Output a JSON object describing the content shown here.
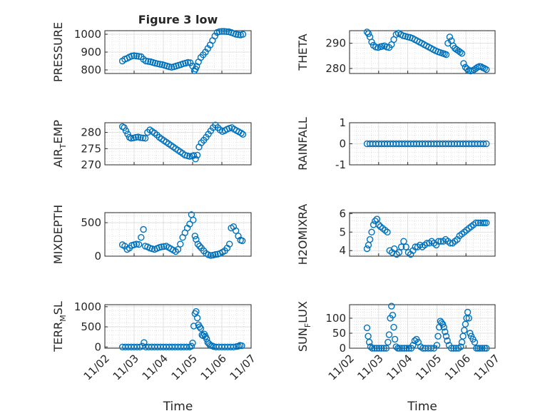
{
  "chart_data": [
    {
      "type": "scatter",
      "title": "Figure 3 low",
      "ylabel": "PRESSURE",
      "ylim": [
        780,
        1020
      ],
      "yticks": [
        "800",
        "900",
        "1000"
      ],
      "xlim_days": [
        2,
        7
      ],
      "series": [
        {
          "x": [
            2.6,
            2.68,
            2.76,
            2.84,
            2.92,
            3.0,
            3.08,
            3.16,
            3.24,
            3.32,
            3.4,
            3.48,
            3.56,
            3.64,
            3.72,
            3.8,
            3.88,
            3.96,
            4.04,
            4.12,
            4.2,
            4.28,
            4.36,
            4.44,
            4.52,
            4.6,
            4.68,
            4.76,
            4.84,
            4.92,
            5.0,
            5.06,
            5.1,
            5.14,
            5.2,
            5.28,
            5.36,
            5.44,
            5.52,
            5.6,
            5.68,
            5.76,
            5.84,
            5.92,
            6.0,
            6.08,
            6.16,
            6.24,
            6.32,
            6.4,
            6.48,
            6.56,
            6.64,
            6.72
          ],
          "y": [
            850,
            860,
            865,
            872,
            878,
            880,
            878,
            876,
            874,
            860,
            850,
            848,
            846,
            842,
            838,
            835,
            832,
            830,
            826,
            822,
            818,
            815,
            818,
            822,
            826,
            830,
            835,
            838,
            842,
            840,
            822,
            795,
            805,
            820,
            845,
            870,
            885,
            900,
            920,
            940,
            965,
            990,
            1010,
            1015,
            1016,
            1016,
            1015,
            1014,
            1010,
            1005,
            1000,
            998,
            996,
            1000
          ]
        }
      ]
    },
    {
      "type": "scatter",
      "ylabel": "THETA",
      "ylim": [
        278,
        295
      ],
      "yticks": [
        "280",
        "290"
      ],
      "xlim_days": [
        2,
        7
      ],
      "series": [
        {
          "x": [
            2.6,
            2.65,
            2.7,
            2.76,
            2.82,
            2.9,
            2.98,
            3.06,
            3.12,
            3.2,
            3.28,
            3.36,
            3.44,
            3.52,
            3.6,
            3.68,
            3.76,
            3.84,
            3.92,
            4.0,
            4.08,
            4.16,
            4.24,
            4.32,
            4.4,
            4.48,
            4.56,
            4.64,
            4.72,
            4.8,
            4.88,
            4.96,
            5.04,
            5.12,
            5.2,
            5.26,
            5.32,
            5.38,
            5.44,
            5.5,
            5.56,
            5.62,
            5.68,
            5.74,
            5.8,
            5.86,
            5.92,
            5.98,
            6.04,
            6.1,
            6.16,
            6.22,
            6.28,
            6.34,
            6.4,
            6.46,
            6.52,
            6.58,
            6.64,
            6.7
          ],
          "y": [
            294.5,
            293.8,
            292.5,
            290.5,
            289.2,
            288.5,
            288.3,
            288.6,
            288.8,
            289,
            288.5,
            288.3,
            289.5,
            291.5,
            293.5,
            294,
            293.5,
            293,
            292.8,
            292.5,
            292.3,
            292,
            291.5,
            291,
            290.5,
            290,
            289.5,
            289,
            288.5,
            288,
            287.5,
            287,
            286.6,
            286.3,
            286,
            285.8,
            285.5,
            290,
            292.5,
            291,
            289,
            288,
            287.5,
            287,
            286.5,
            286,
            282,
            280.5,
            279.8,
            279.3,
            279,
            279.2,
            279.5,
            280,
            280.5,
            280.8,
            280.7,
            280.3,
            280,
            279.6
          ]
        }
      ]
    },
    {
      "type": "scatter",
      "ylabel": "AIR_TEMP",
      "ylabel_main": "AIR",
      "ylabel_sub": "T",
      "ylabel_rest": "EMP",
      "ylim": [
        270,
        283
      ],
      "yticks": [
        "270",
        "275",
        "280"
      ],
      "xlim_days": [
        2,
        7
      ],
      "series": [
        {
          "x": [
            2.6,
            2.66,
            2.72,
            2.78,
            2.84,
            2.9,
            2.98,
            3.06,
            3.14,
            3.22,
            3.3,
            3.38,
            3.46,
            3.54,
            3.62,
            3.7,
            3.78,
            3.86,
            3.94,
            4.02,
            4.1,
            4.18,
            4.26,
            4.34,
            4.42,
            4.5,
            4.58,
            4.66,
            4.74,
            4.82,
            4.9,
            4.98,
            5.04,
            5.1,
            5.16,
            5.22,
            5.3,
            5.38,
            5.46,
            5.54,
            5.62,
            5.7,
            5.78,
            5.86,
            5.94,
            6.02,
            6.1,
            6.18,
            6.26,
            6.34,
            6.42,
            6.5,
            6.58,
            6.66,
            6.72
          ],
          "y": [
            281.8,
            281.5,
            280.5,
            279.5,
            278.5,
            278.2,
            278.3,
            278.5,
            278.6,
            278.4,
            278.3,
            278.2,
            280,
            280.8,
            280.3,
            279.8,
            279.2,
            278.5,
            278,
            277.5,
            277,
            276.5,
            276,
            275.5,
            275,
            274.5,
            274,
            273.5,
            273,
            272.8,
            272.6,
            272.7,
            272.9,
            271.8,
            273,
            275.5,
            276.8,
            277.6,
            278.5,
            279.5,
            280.5,
            281.5,
            282.3,
            281.5,
            280.8,
            280.3,
            280.6,
            281,
            281.3,
            281.5,
            281,
            280.6,
            280.2,
            279.8,
            279.4
          ]
        }
      ]
    },
    {
      "type": "scatter",
      "ylabel": "RAINFALL",
      "ylim": [
        -1,
        1
      ],
      "yticks": [
        "-1",
        "0",
        "1"
      ],
      "xlim_days": [
        2,
        7
      ],
      "series": [
        {
          "x": [
            2.6,
            2.7,
            2.8,
            2.9,
            3.0,
            3.1,
            3.2,
            3.3,
            3.4,
            3.5,
            3.6,
            3.7,
            3.8,
            3.9,
            4.0,
            4.1,
            4.2,
            4.3,
            4.4,
            4.5,
            4.6,
            4.7,
            4.8,
            4.9,
            5.0,
            5.1,
            5.2,
            5.3,
            5.4,
            5.5,
            5.6,
            5.7,
            5.8,
            5.9,
            6.0,
            6.1,
            6.2,
            6.3,
            6.4,
            6.5,
            6.6,
            6.7
          ],
          "y": [
            0,
            0,
            0,
            0,
            0,
            0,
            0,
            0,
            0,
            0,
            0,
            0,
            0,
            0,
            0,
            0,
            0,
            0,
            0,
            0,
            0,
            0,
            0,
            0,
            0,
            0,
            0,
            0,
            0,
            0,
            0,
            0,
            0,
            0,
            0,
            0,
            0,
            0,
            0,
            0,
            0,
            0
          ]
        }
      ]
    },
    {
      "type": "scatter",
      "ylabel": "MIXDEPTH",
      "ylim": [
        0,
        650
      ],
      "yticks": [
        "0",
        "500"
      ],
      "xlim_days": [
        2,
        7
      ],
      "series": [
        {
          "x": [
            2.6,
            2.68,
            2.76,
            2.84,
            2.92,
            3.0,
            3.08,
            3.16,
            3.24,
            3.32,
            3.38,
            3.46,
            3.54,
            3.62,
            3.7,
            3.78,
            3.86,
            3.94,
            4.02,
            4.1,
            4.18,
            4.26,
            4.34,
            4.42,
            4.5,
            4.58,
            4.66,
            4.74,
            4.82,
            4.9,
            4.96,
            5.02,
            5.08,
            5.12,
            5.18,
            5.24,
            5.3,
            5.38,
            5.46,
            5.54,
            5.62,
            5.7,
            5.78,
            5.86,
            5.94,
            6.02,
            6.1,
            6.18,
            6.26,
            6.32,
            6.4,
            6.48,
            6.56,
            6.64,
            6.7
          ],
          "y": [
            170,
            150,
            100,
            120,
            160,
            170,
            180,
            175,
            280,
            400,
            150,
            140,
            120,
            110,
            100,
            115,
            130,
            140,
            145,
            150,
            130,
            110,
            90,
            70,
            100,
            180,
            280,
            350,
            420,
            480,
            620,
            540,
            300,
            250,
            180,
            150,
            120,
            80,
            40,
            20,
            10,
            15,
            25,
            30,
            40,
            60,
            80,
            120,
            180,
            420,
            440,
            380,
            300,
            240,
            230
          ]
        }
      ]
    },
    {
      "type": "scatter",
      "ylabel": "H2OMIXRA",
      "ylim": [
        3.7,
        6.05
      ],
      "yticks": [
        "4",
        "5",
        "6"
      ],
      "xlim_days": [
        2,
        7
      ],
      "series": [
        {
          "x": [
            2.6,
            2.65,
            2.7,
            2.76,
            2.82,
            2.88,
            2.94,
            3.0,
            3.06,
            3.14,
            3.22,
            3.3,
            3.38,
            3.46,
            3.54,
            3.62,
            3.7,
            3.78,
            3.86,
            3.94,
            4.02,
            4.1,
            4.18,
            4.26,
            4.34,
            4.42,
            4.5,
            4.58,
            4.66,
            4.74,
            4.82,
            4.9,
            4.98,
            5.06,
            5.14,
            5.22,
            5.3,
            5.38,
            5.46,
            5.54,
            5.62,
            5.7,
            5.78,
            5.86,
            5.94,
            6.02,
            6.1,
            6.18,
            6.26,
            6.34,
            6.42,
            6.5,
            6.58,
            6.64,
            6.7
          ],
          "y": [
            4.1,
            4.3,
            4.6,
            5.0,
            5.4,
            5.6,
            5.7,
            5.4,
            5.3,
            5.2,
            5.1,
            5.0,
            4.0,
            3.9,
            4.1,
            3.8,
            3.9,
            4.2,
            4.5,
            4.2,
            3.9,
            3.8,
            4.0,
            4.2,
            4.2,
            4.3,
            4.2,
            4.3,
            4.4,
            4.4,
            4.5,
            4.4,
            4.3,
            4.5,
            4.5,
            4.5,
            4.6,
            4.5,
            4.4,
            4.4,
            4.5,
            4.6,
            4.8,
            4.9,
            5.0,
            5.1,
            5.2,
            5.3,
            5.4,
            5.5,
            5.5,
            5.5,
            5.5,
            5.5,
            5.5
          ]
        }
      ]
    },
    {
      "type": "scatter",
      "ylabel": "TERR_MSL",
      "ylabel_main": "TERR",
      "ylabel_sub": "M",
      "ylabel_rest": "SL",
      "ylim": [
        -30,
        1050
      ],
      "yticks": [
        "0",
        "500",
        "1000"
      ],
      "xtick_labels": [
        "11/02",
        "11/03",
        "11/04",
        "11/05",
        "11/06",
        "11/07"
      ],
      "xlabel": "Time",
      "xlim_days": [
        2,
        7
      ],
      "series": [
        {
          "x": [
            2.6,
            2.7,
            2.8,
            2.9,
            3.0,
            3.1,
            3.2,
            3.28,
            3.34,
            3.4,
            3.5,
            3.6,
            3.7,
            3.8,
            3.9,
            4.0,
            4.1,
            4.2,
            4.3,
            4.4,
            4.5,
            4.6,
            4.7,
            4.8,
            4.9,
            4.96,
            5.0,
            5.04,
            5.08,
            5.12,
            5.16,
            5.2,
            5.24,
            5.28,
            5.32,
            5.36,
            5.4,
            5.44,
            5.48,
            5.52,
            5.56,
            5.6,
            5.66,
            5.72,
            5.8,
            5.9,
            6.0,
            6.1,
            6.2,
            6.3,
            6.4,
            6.5,
            6.56,
            6.62,
            6.68
          ],
          "y": [
            0,
            0,
            0,
            0,
            0,
            0,
            0,
            20,
            110,
            0,
            0,
            0,
            0,
            0,
            0,
            0,
            0,
            0,
            0,
            0,
            0,
            0,
            0,
            0,
            0,
            20,
            100,
            520,
            830,
            880,
            720,
            550,
            500,
            460,
            300,
            280,
            320,
            260,
            200,
            110,
            80,
            40,
            30,
            10,
            0,
            0,
            0,
            0,
            0,
            0,
            0,
            10,
            20,
            40,
            30
          ]
        }
      ]
    },
    {
      "type": "scatter",
      "ylabel": "SUN_FLUX",
      "ylabel_main": "SUN",
      "ylabel_sub": "F",
      "ylabel_rest": "LUX",
      "ylim": [
        0,
        145
      ],
      "yticks": [
        "0",
        "50",
        "100"
      ],
      "xtick_labels": [
        "11/02",
        "11/03",
        "11/04",
        "11/05",
        "11/06",
        "11/07"
      ],
      "xlabel": "Time",
      "xlim_days": [
        2,
        7
      ],
      "series": [
        {
          "x": [
            2.6,
            2.64,
            2.68,
            2.72,
            2.78,
            2.86,
            2.94,
            3.02,
            3.1,
            3.18,
            3.26,
            3.32,
            3.36,
            3.4,
            3.44,
            3.48,
            3.52,
            3.56,
            3.6,
            3.66,
            3.72,
            3.8,
            3.88,
            3.96,
            4.04,
            4.12,
            4.18,
            4.24,
            4.3,
            4.36,
            4.44,
            4.52,
            4.6,
            4.7,
            4.8,
            4.9,
            5.0,
            5.04,
            5.08,
            5.12,
            5.16,
            5.2,
            5.24,
            5.28,
            5.32,
            5.36,
            5.42,
            5.5,
            5.58,
            5.66,
            5.74,
            5.82,
            5.86,
            5.9,
            5.94,
            5.98,
            6.02,
            6.06,
            6.1,
            6.14,
            6.18,
            6.24,
            6.3,
            6.36,
            6.42,
            6.48,
            6.56,
            6.64,
            6.7
          ],
          "y": [
            68,
            40,
            20,
            5,
            0,
            0,
            0,
            0,
            0,
            0,
            0,
            20,
            45,
            100,
            140,
            110,
            70,
            30,
            5,
            0,
            0,
            0,
            0,
            0,
            0,
            0,
            10,
            25,
            30,
            20,
            5,
            0,
            0,
            0,
            0,
            0,
            10,
            40,
            70,
            90,
            85,
            80,
            70,
            55,
            40,
            25,
            10,
            0,
            0,
            0,
            0,
            5,
            20,
            40,
            60,
            80,
            100,
            120,
            100,
            50,
            40,
            30,
            20,
            0,
            0,
            0,
            0,
            0,
            0
          ]
        }
      ]
    }
  ]
}
